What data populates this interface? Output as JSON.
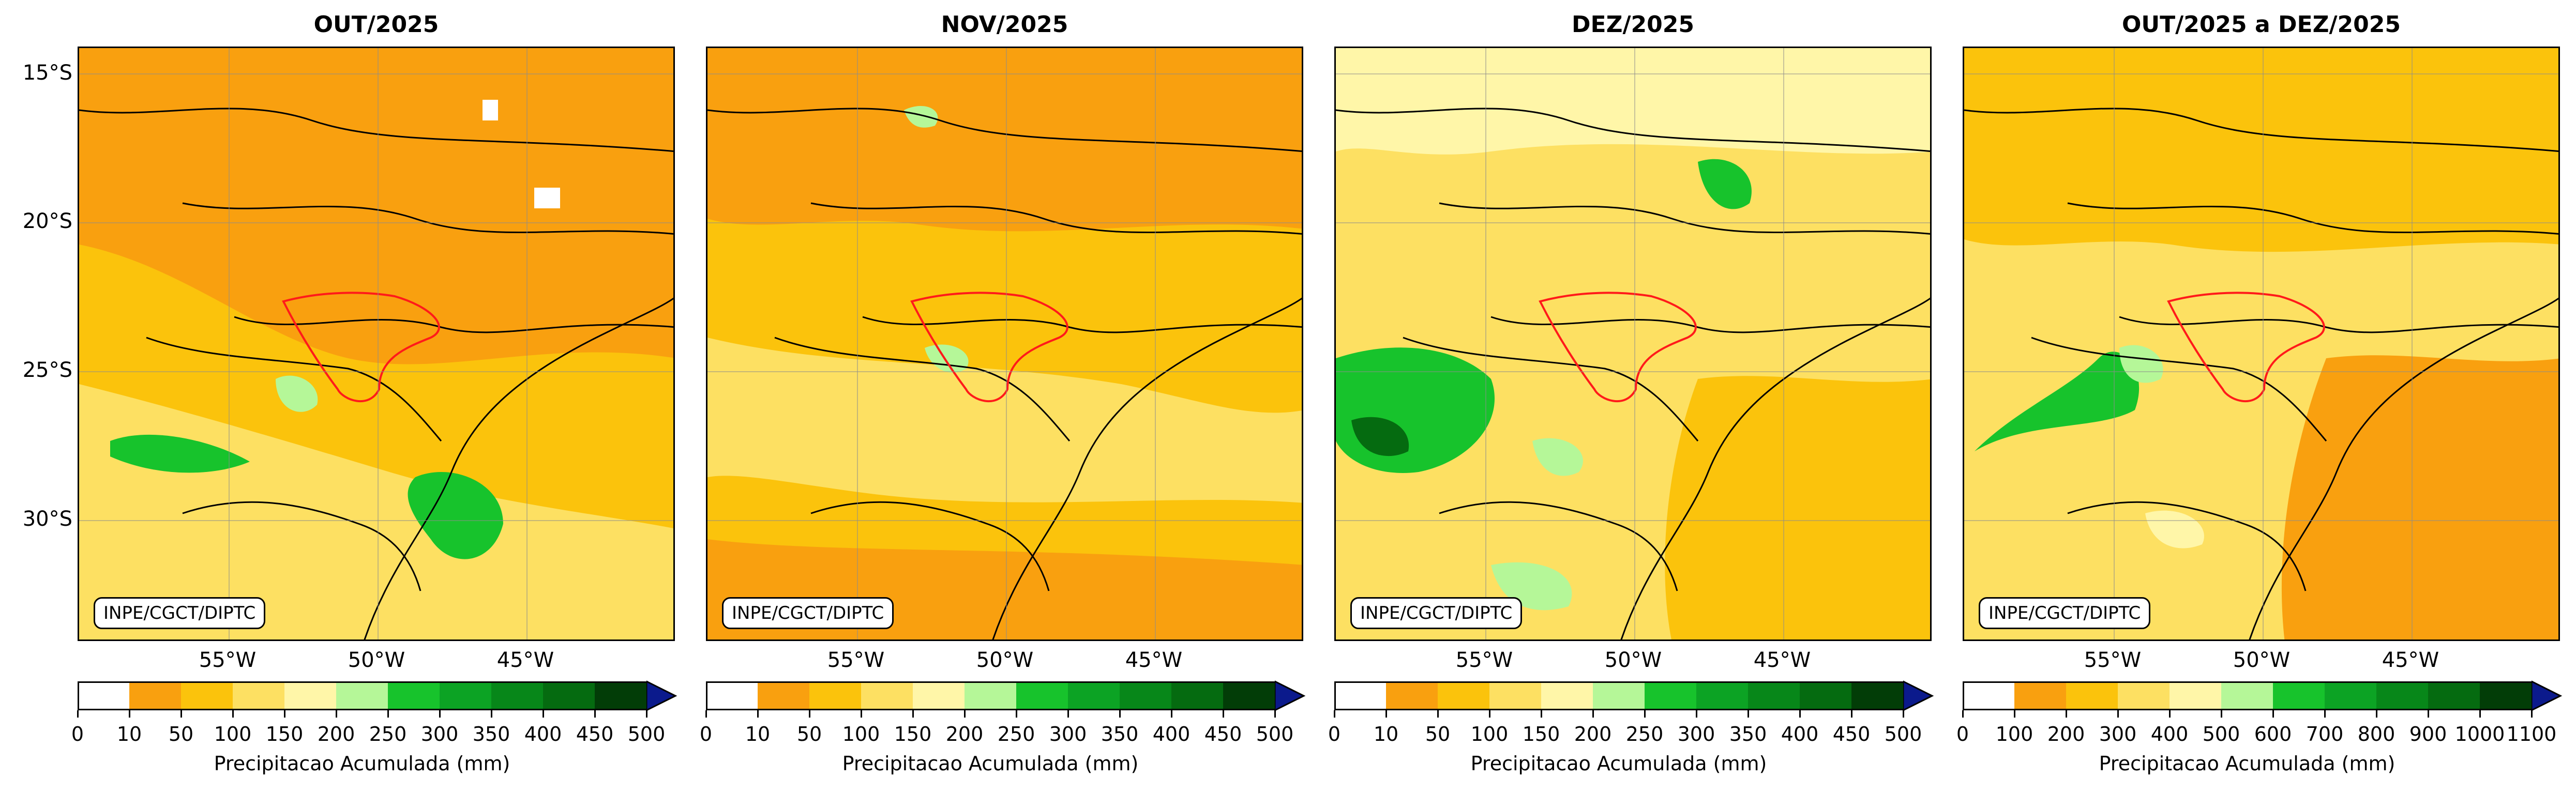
{
  "panels": [
    {
      "title": "OUT/2025",
      "credit": "INPE/CGCT/DIPTC",
      "scale": "month",
      "colorbar_label": "Precipitacao Acumulada (mm)"
    },
    {
      "title": "NOV/2025",
      "credit": "INPE/CGCT/DIPTC",
      "scale": "month",
      "colorbar_label": "Precipitacao Acumulada (mm)"
    },
    {
      "title": "DEZ/2025",
      "credit": "INPE/CGCT/DIPTC",
      "scale": "month",
      "colorbar_label": "Precipitacao Acumulada (mm)"
    },
    {
      "title": "OUT/2025 a DEZ/2025",
      "credit": "INPE/CGCT/DIPTC",
      "scale": "season",
      "colorbar_label": "Precipitacao Acumulada (mm)"
    }
  ],
  "latitude_labels": [
    "15°S",
    "20°S",
    "25°S",
    "30°S"
  ],
  "longitude_labels": [
    "55°W",
    "50°W",
    "45°W"
  ],
  "colorbar_month_ticks": [
    "0",
    "10",
    "50",
    "100",
    "150",
    "200",
    "250",
    "300",
    "350",
    "400",
    "450",
    "500"
  ],
  "colorbar_season_ticks": [
    "0",
    "100",
    "200",
    "300",
    "400",
    "500",
    "600",
    "700",
    "800",
    "900",
    "1000",
    "1100"
  ],
  "colorbar_colors": [
    "#ffffff",
    "#f9a00f",
    "#fbc30c",
    "#fde062",
    "#fff6a8",
    "#b5f798",
    "#17c32c",
    "#0ca324",
    "#078719",
    "#056b10",
    "#023d07"
  ],
  "overflow_color": "#0b1a8c"
}
